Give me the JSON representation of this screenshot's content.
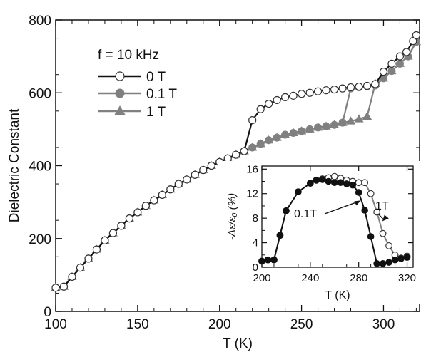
{
  "chart_data": [
    {
      "type": "line",
      "xlabel": "T (K)",
      "ylabel": "Dielectric Constant",
      "xlim": [
        100,
        322
      ],
      "ylim": [
        0,
        800
      ],
      "xticks": [
        100,
        150,
        200,
        250,
        300
      ],
      "yticks": [
        0,
        200,
        400,
        600,
        800
      ],
      "legend_title": "f = 10 kHz",
      "legend_position": "top-left",
      "grid": false,
      "series": [
        {
          "name": "0 T",
          "color": "#111111",
          "marker": "circle-open",
          "points": [
            [
              100,
              65
            ],
            [
              105,
              68
            ],
            [
              110,
              95
            ],
            [
              115,
              120
            ],
            [
              120,
              145
            ],
            [
              125,
              170
            ],
            [
              130,
              195
            ],
            [
              135,
              215
            ],
            [
              140,
              235
            ],
            [
              145,
              255
            ],
            [
              150,
              272
            ],
            [
              155,
              290
            ],
            [
              160,
              305
            ],
            [
              165,
              320
            ],
            [
              170,
              335
            ],
            [
              175,
              350
            ],
            [
              180,
              362
            ],
            [
              185,
              375
            ],
            [
              190,
              388
            ],
            [
              195,
              400
            ],
            [
              200,
              410
            ],
            [
              205,
              420
            ],
            [
              210,
              430
            ],
            [
              215,
              440
            ],
            [
              220,
              525
            ],
            [
              225,
              555
            ],
            [
              230,
              570
            ],
            [
              235,
              580
            ],
            [
              240,
              588
            ],
            [
              245,
              592
            ],
            [
              250,
              597
            ],
            [
              255,
              600
            ],
            [
              260,
              604
            ],
            [
              265,
              607
            ],
            [
              270,
              609
            ],
            [
              275,
              612
            ],
            [
              280,
              615
            ],
            [
              285,
              617
            ],
            [
              290,
              619
            ],
            [
              295,
              624
            ],
            [
              300,
              658
            ],
            [
              305,
              680
            ],
            [
              310,
              700
            ],
            [
              314,
              712
            ],
            [
              318,
              742
            ],
            [
              320,
              758
            ]
          ]
        },
        {
          "name": "0.1 T",
          "color": "#808080",
          "marker": "circle-filled",
          "points": [
            [
              100,
              65
            ],
            [
              105,
              68
            ],
            [
              110,
              95
            ],
            [
              115,
              120
            ],
            [
              120,
              145
            ],
            [
              125,
              170
            ],
            [
              130,
              195
            ],
            [
              135,
              215
            ],
            [
              140,
              235
            ],
            [
              145,
              255
            ],
            [
              150,
              272
            ],
            [
              155,
              290
            ],
            [
              160,
              305
            ],
            [
              165,
              320
            ],
            [
              170,
              335
            ],
            [
              175,
              350
            ],
            [
              180,
              362
            ],
            [
              185,
              375
            ],
            [
              190,
              388
            ],
            [
              195,
              400
            ],
            [
              200,
              410
            ],
            [
              205,
              420
            ],
            [
              210,
              430
            ],
            [
              215,
              440
            ],
            [
              220,
              450
            ],
            [
              225,
              460
            ],
            [
              230,
              470
            ],
            [
              235,
              477
            ],
            [
              240,
              485
            ],
            [
              245,
              490
            ],
            [
              250,
              495
            ],
            [
              255,
              500
            ],
            [
              260,
              505
            ],
            [
              265,
              508
            ],
            [
              270,
              512
            ],
            [
              275,
              518
            ],
            [
              280,
              612
            ],
            [
              285,
              615
            ],
            [
              290,
              618
            ],
            [
              295,
              620
            ],
            [
              300,
              640
            ],
            [
              305,
              660
            ],
            [
              310,
              680
            ],
            [
              315,
              700
            ],
            [
              320,
              740
            ]
          ]
        },
        {
          "name": "1 T",
          "color": "#808080",
          "marker": "triangle-filled",
          "points": [
            [
              100,
              65
            ],
            [
              105,
              68
            ],
            [
              110,
              95
            ],
            [
              115,
              120
            ],
            [
              120,
              145
            ],
            [
              125,
              170
            ],
            [
              130,
              195
            ],
            [
              135,
              215
            ],
            [
              140,
              235
            ],
            [
              145,
              255
            ],
            [
              150,
              272
            ],
            [
              155,
              290
            ],
            [
              160,
              305
            ],
            [
              165,
              320
            ],
            [
              170,
              335
            ],
            [
              175,
              350
            ],
            [
              180,
              362
            ],
            [
              185,
              375
            ],
            [
              190,
              388
            ],
            [
              195,
              400
            ],
            [
              200,
              410
            ],
            [
              205,
              420
            ],
            [
              210,
              430
            ],
            [
              215,
              440
            ],
            [
              220,
              450
            ],
            [
              225,
              460
            ],
            [
              230,
              470
            ],
            [
              235,
              477
            ],
            [
              240,
              485
            ],
            [
              245,
              490
            ],
            [
              250,
              495
            ],
            [
              255,
              500
            ],
            [
              260,
              505
            ],
            [
              265,
              508
            ],
            [
              270,
              512
            ],
            [
              275,
              518
            ],
            [
              280,
              522
            ],
            [
              285,
              528
            ],
            [
              290,
              535
            ],
            [
              295,
              625
            ],
            [
              300,
              640
            ],
            [
              305,
              660
            ],
            [
              310,
              680
            ],
            [
              315,
              700
            ],
            [
              320,
              740
            ]
          ]
        }
      ]
    },
    {
      "type": "line",
      "subtype": "inset",
      "xlabel": "T (K)",
      "ylabel": "-Δε/ε₀ (%)",
      "xlim": [
        200,
        325
      ],
      "ylim": [
        0,
        16.5
      ],
      "xticks": [
        200,
        240,
        280,
        320
      ],
      "yticks": [
        0,
        4,
        8,
        12,
        16
      ],
      "grid": false,
      "annotations": [
        {
          "text": "0.1T",
          "points_to": [
            284,
            11
          ]
        },
        {
          "text": "1T",
          "points_to": [
            296,
            7.5
          ]
        }
      ],
      "series": [
        {
          "name": "0.1T",
          "color": "#111111",
          "marker": "circle-filled",
          "points": [
            [
              200,
              1
            ],
            [
              205,
              1.2
            ],
            [
              210,
              1.2
            ],
            [
              215,
              5.2
            ],
            [
              220,
              9.2
            ],
            [
              230,
              12.3
            ],
            [
              240,
              13.7
            ],
            [
              245,
              14.2
            ],
            [
              250,
              14.3
            ],
            [
              255,
              14.0
            ],
            [
              260,
              13.8
            ],
            [
              265,
              13.8
            ],
            [
              270,
              13.6
            ],
            [
              275,
              13.4
            ],
            [
              280,
              12.2
            ],
            [
              285,
              9.3
            ],
            [
              290,
              5
            ],
            [
              295,
              0.6
            ],
            [
              300,
              0.6
            ],
            [
              305,
              0.8
            ],
            [
              310,
              1.2
            ],
            [
              315,
              1.4
            ],
            [
              320,
              1.6
            ]
          ]
        },
        {
          "name": "1T",
          "color": "#808080",
          "marker": "circle-open",
          "points": [
            [
              200,
              1
            ],
            [
              205,
              1.2
            ],
            [
              210,
              1.2
            ],
            [
              215,
              5.2
            ],
            [
              220,
              9.2
            ],
            [
              230,
              12.3
            ],
            [
              240,
              13.7
            ],
            [
              245,
              14.2
            ],
            [
              250,
              14.4
            ],
            [
              255,
              14.6
            ],
            [
              260,
              14.8
            ],
            [
              265,
              14.5
            ],
            [
              270,
              14.2
            ],
            [
              275,
              14.0
            ],
            [
              280,
              13.8
            ],
            [
              285,
              13.8
            ],
            [
              290,
              12
            ],
            [
              295,
              9
            ],
            [
              300,
              5.5
            ],
            [
              305,
              3.5
            ],
            [
              310,
              2
            ],
            [
              315,
              1.5
            ],
            [
              320,
              1.8
            ]
          ]
        }
      ]
    }
  ]
}
